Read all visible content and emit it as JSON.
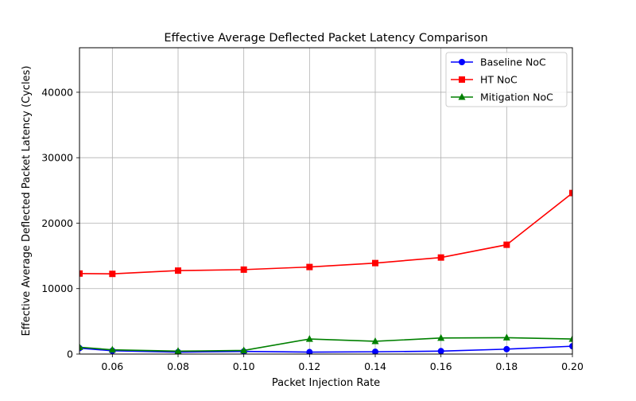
{
  "chart_data": {
    "type": "line",
    "title": "Effective Average Deflected Packet Latency Comparison",
    "xlabel": "Packet Injection Rate",
    "ylabel": "Effective Average Deflected Packet Latency (Cycles)",
    "xlim": [
      0.05,
      0.2
    ],
    "ylim": [
      0,
      46800
    ],
    "x_ticks": [
      0.06,
      0.08,
      0.1,
      0.12,
      0.14,
      0.16,
      0.18,
      0.2
    ],
    "x_tick_labels": [
      "0.06",
      "0.08",
      "0.10",
      "0.12",
      "0.14",
      "0.16",
      "0.18",
      "0.20"
    ],
    "y_ticks": [
      0,
      10000,
      20000,
      30000,
      40000
    ],
    "y_tick_labels": [
      "0",
      "10000",
      "20000",
      "30000",
      "40000"
    ],
    "grid": true,
    "legend_position": "top-right",
    "x": [
      0.05,
      0.06,
      0.08,
      0.1,
      0.12,
      0.14,
      0.16,
      0.18,
      0.2
    ],
    "series": [
      {
        "name": "Baseline NoC",
        "color": "#0000ff",
        "marker": "circle",
        "values": [
          900,
          500,
          300,
          400,
          300,
          350,
          450,
          750,
          1200
        ]
      },
      {
        "name": "HT NoC",
        "color": "#ff0000",
        "marker": "square",
        "values": [
          12300,
          12250,
          12750,
          12900,
          13300,
          13900,
          14750,
          16700,
          24600
        ]
      },
      {
        "name": "Mitigation NoC",
        "color": "#008000",
        "marker": "triangle",
        "values": [
          1050,
          650,
          450,
          550,
          2300,
          1950,
          2450,
          2500,
          2300
        ]
      }
    ]
  }
}
